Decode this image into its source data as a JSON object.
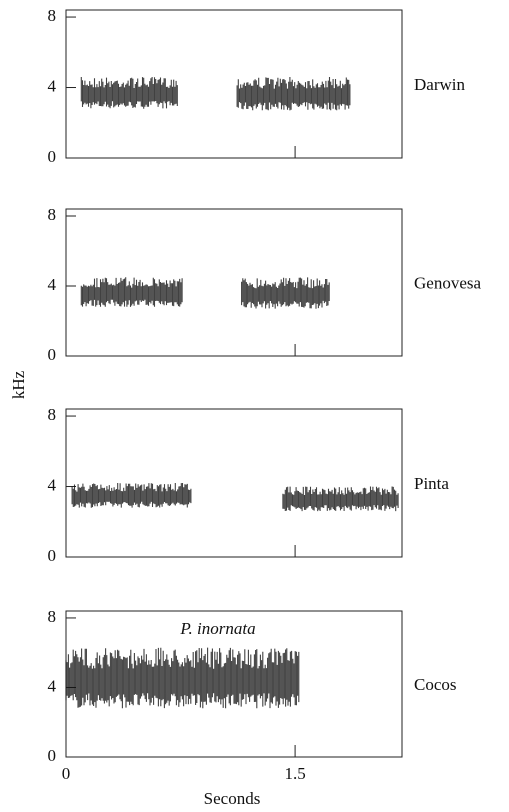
{
  "chart_data": [
    {
      "type": "spectrogram",
      "label": "Darwin",
      "xlim": [
        0,
        2.2
      ],
      "ylim": [
        0,
        8.4
      ],
      "xticks": [
        0,
        1.5
      ],
      "yticks": [
        0,
        4,
        8
      ],
      "color": "#111111",
      "syllables": [
        {
          "start": 0.1,
          "end": 0.73,
          "low": 2.8,
          "high": 4.6
        },
        {
          "start": 1.12,
          "end": 1.86,
          "low": 2.7,
          "high": 4.6
        }
      ]
    },
    {
      "type": "spectrogram",
      "label": "Genovesa",
      "xlim": [
        0,
        2.2
      ],
      "ylim": [
        0,
        8.4
      ],
      "xticks": [
        0,
        1.5
      ],
      "yticks": [
        0,
        4,
        8
      ],
      "color": "#111111",
      "syllables": [
        {
          "start": 0.1,
          "end": 0.76,
          "low": 2.8,
          "high": 4.5
        },
        {
          "start": 1.15,
          "end": 1.73,
          "low": 2.7,
          "high": 4.5
        }
      ]
    },
    {
      "type": "spectrogram",
      "label": "Pinta",
      "xlim": [
        0,
        2.2
      ],
      "ylim": [
        0,
        8.4
      ],
      "xticks": [
        0,
        1.5
      ],
      "yticks": [
        0,
        4,
        8
      ],
      "color": "#111111",
      "syllables": [
        {
          "start": 0.04,
          "end": 0.82,
          "low": 2.8,
          "high": 4.2
        },
        {
          "start": 1.42,
          "end": 2.18,
          "low": 2.6,
          "high": 4.0
        }
      ]
    },
    {
      "type": "spectrogram",
      "label": "Cocos",
      "annotation": "P. inornata",
      "xlim": [
        0,
        2.2
      ],
      "ylim": [
        0,
        8.4
      ],
      "xticks": [
        0,
        1.5
      ],
      "yticks": [
        0,
        4,
        8
      ],
      "color": "#111111",
      "xlabel": "Seconds",
      "ylabel": "kHz",
      "syllables": [
        {
          "start": 0.0,
          "end": 1.53,
          "low": 2.8,
          "high": 6.3
        }
      ]
    }
  ]
}
